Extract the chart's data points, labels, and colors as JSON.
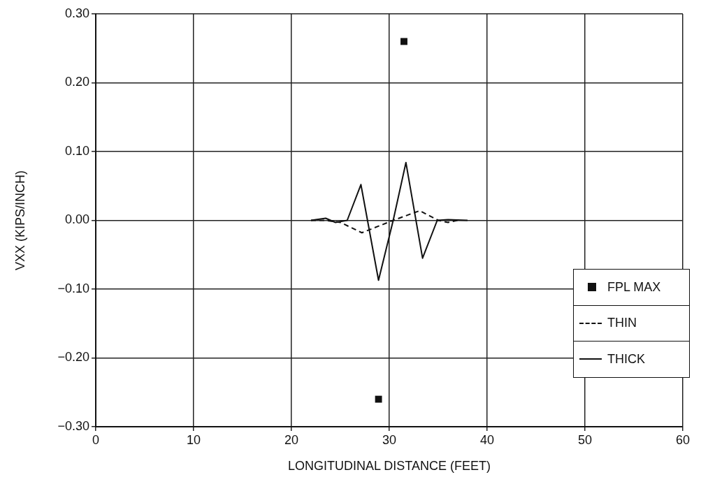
{
  "chart_data": {
    "type": "line",
    "xlabel": "LONGITUDINAL DISTANCE (FEET)",
    "ylabel": "VXX (KIPS/INCH)",
    "xlim": [
      0,
      60
    ],
    "xticks": [
      0,
      10,
      20,
      30,
      40,
      50,
      60
    ],
    "ylim": [
      -0.3,
      0.3
    ],
    "yticks": [
      {
        "value": -0.3,
        "label": "−0.30"
      },
      {
        "value": -0.2,
        "label": "−0.20"
      },
      {
        "value": -0.1,
        "label": "−0.10"
      },
      {
        "value": 0,
        "label": "0.00"
      },
      {
        "value": 0.1,
        "label": "0.10"
      },
      {
        "value": 0.2,
        "label": "0.20"
      },
      {
        "value": 0.3,
        "label": "0.30"
      }
    ],
    "grid": true,
    "legend": "bottom right",
    "series": [
      {
        "name": "FPL MAX",
        "type": "scatter",
        "marker": "square",
        "color": "#111111",
        "x": [
          31.5,
          28.9
        ],
        "values": [
          0.26,
          -0.26
        ]
      },
      {
        "name": "THIN",
        "line_style": "dashed",
        "marker": "none",
        "color": "#111111",
        "x": [
          22,
          23.5,
          25,
          27.2,
          30.4,
          33.1,
          35,
          36,
          37
        ],
        "values": [
          0,
          0,
          -0.003,
          -0.018,
          0,
          0.014,
          0,
          -0.003,
          0
        ]
      },
      {
        "name": "THICK",
        "line_style": "solid",
        "marker": "none",
        "color": "#111111",
        "x": [
          22,
          23.5,
          24.5,
          25.7,
          27.1,
          28.9,
          30.4,
          31.7,
          33.4,
          34.9,
          36,
          38
        ],
        "values": [
          0,
          0.003,
          -0.003,
          0,
          0.052,
          -0.087,
          0,
          0.084,
          -0.055,
          0,
          0.001,
          0
        ]
      }
    ]
  }
}
